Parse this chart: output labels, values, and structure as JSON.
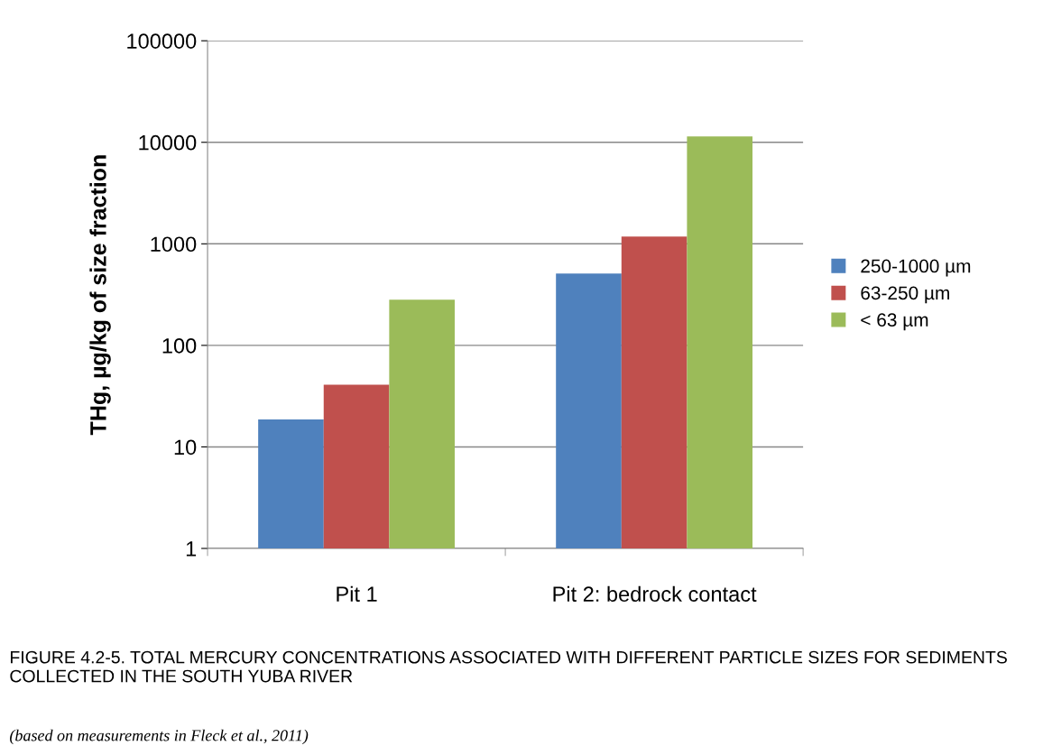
{
  "chart_data": {
    "type": "bar",
    "ylabel": "THg, µg/kg of size fraction",
    "categories": [
      "Pit 1",
      "Pit 2: bedrock contact"
    ],
    "series": [
      {
        "name": "250-1000 µm",
        "color": "#4f81bd",
        "values": [
          18.6,
          510
        ]
      },
      {
        "name": "63-250 µm",
        "color": "#c0504d",
        "values": [
          41,
          1180
        ]
      },
      {
        "name": "< 63 µm",
        "color": "#9bbb59",
        "values": [
          282,
          11400
        ]
      }
    ],
    "log": "y",
    "ylim": [
      1,
      100000
    ],
    "yticks": [
      1,
      10,
      100,
      1000,
      10000,
      100000
    ],
    "grid": "y",
    "legend": "right",
    "annotations": [
      "FIGURE 4.2-5. TOTAL MERCURY CONCENTRATIONS ASSOCIATED WITH DIFFERENT PARTICLE SIZES FOR SEDIMENTS COLLECTED IN THE SOUTH YUBA RIVER",
      "(based on measurements in Fleck et al., 2011)"
    ]
  }
}
